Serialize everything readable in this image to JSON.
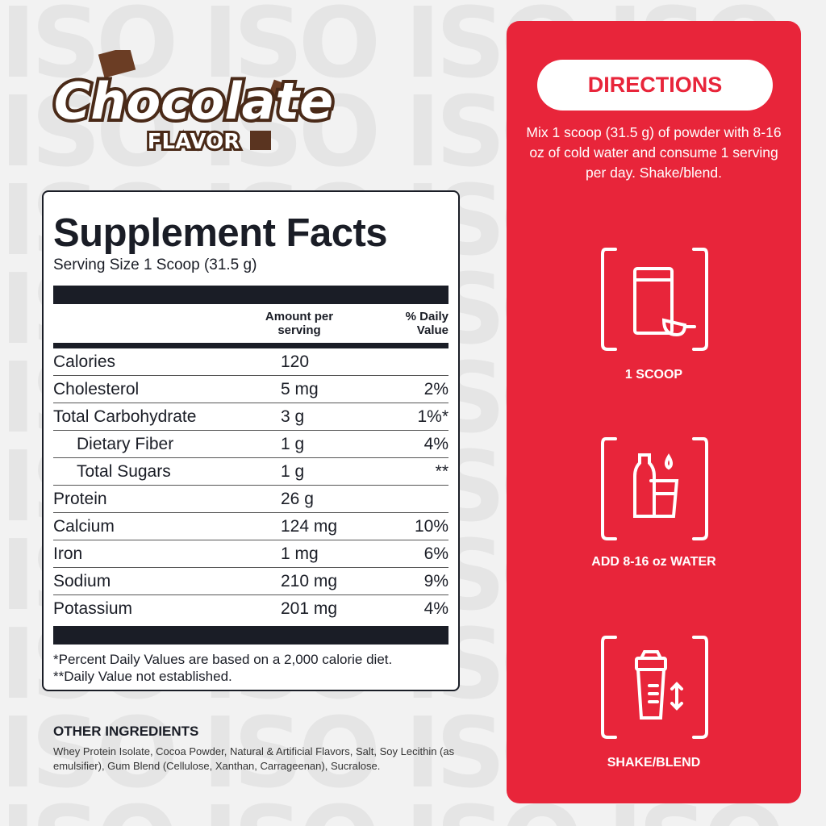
{
  "background": {
    "pattern_text": "ISO ISO ISO ISO ISO ISO ISO ISO ISO ISO ISO ISO ISO ISO ISO ISO ISO ISO ISO ISO ISO ISO ISO ISO ISO ISO ISO ISO ISO ISO ISO ISO ISO ISO ISO ISO ISO ISO ISO ISO ISO ISO ISO ISO ISO ISO ISO ISO ISO ISO ISO"
  },
  "logo": {
    "line1": "Chocolate",
    "line2": "FLAVOR"
  },
  "facts": {
    "title": "Supplement Facts",
    "serving": "Serving Size 1 Scoop (31.5 g)",
    "col_amount": "Amount per serving",
    "col_dv": "% Daily Value",
    "rows": [
      {
        "name": "Calories",
        "amount": "120",
        "dv": ""
      },
      {
        "name": "Cholesterol",
        "amount": "5 mg",
        "dv": "2%"
      },
      {
        "name": "Total Carbohydrate",
        "amount": "3 g",
        "dv": "1%*"
      },
      {
        "name": "Dietary Fiber",
        "amount": "1 g",
        "dv": "4%"
      },
      {
        "name": "Total Sugars",
        "amount": "1 g",
        "dv": "**"
      },
      {
        "name": "Protein",
        "amount": "26 g",
        "dv": ""
      },
      {
        "name": "Calcium",
        "amount": "124 mg",
        "dv": "10%"
      },
      {
        "name": "Iron",
        "amount": "1 mg",
        "dv": "6%"
      },
      {
        "name": "Sodium",
        "amount": "210 mg",
        "dv": "9%"
      },
      {
        "name": "Potassium",
        "amount": "201 mg",
        "dv": "4%"
      }
    ],
    "foot1": "*Percent Daily Values are based on a 2,000 calorie diet.",
    "foot2": "**Daily Value not established."
  },
  "other": {
    "title": "OTHER INGREDIENTS",
    "text": "Whey Protein Isolate, Cocoa Powder, Natural & Artificial Flavors, Salt, Soy Lecithin (as emulsifier), Gum Blend (Cellulose, Xanthan, Carrageenan), Sucralose."
  },
  "directions": {
    "title": "DIRECTIONS",
    "text": "Mix 1 scoop (31.5 g) of powder with 8-16 oz of cold water and consume 1 serving per day. Shake/blend.",
    "steps": [
      {
        "label": "1 SCOOP",
        "icon": "scoop-icon"
      },
      {
        "label": "ADD 8-16 oz WATER",
        "icon": "water-bottle-icon"
      },
      {
        "label": "SHAKE/BLEND",
        "icon": "shaker-icon"
      }
    ]
  },
  "colors": {
    "accent": "#e8253a",
    "text": "#1a1d26",
    "chocolate": "#5a3420"
  }
}
